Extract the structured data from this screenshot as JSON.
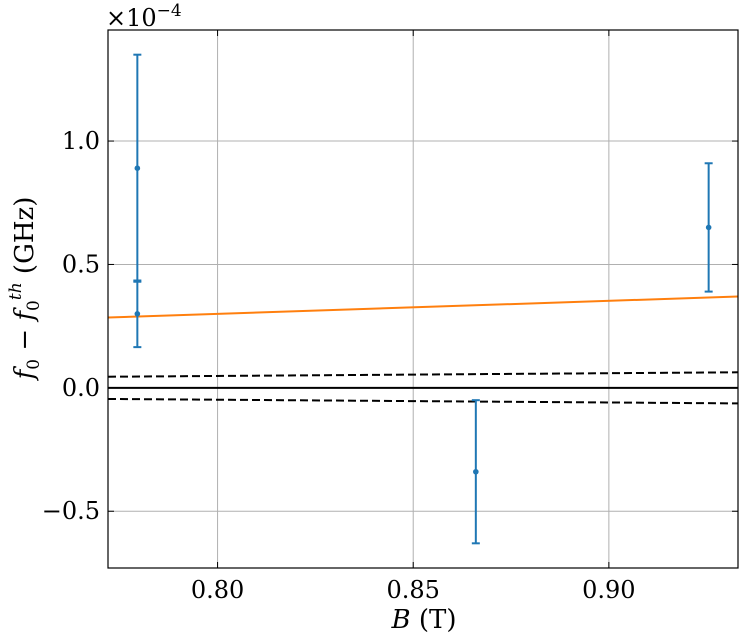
{
  "chart_data": {
    "type": "scatter",
    "xlabel": "B (T)",
    "ylabel": "f0 − f0^th (GHz)",
    "y_multiplier_label": "×10−4",
    "xlim": [
      0.772,
      0.933
    ],
    "ylim": [
      -0.73,
      1.45
    ],
    "x_ticks": [
      0.8,
      0.85,
      0.9
    ],
    "x_tick_labels": [
      "0.80",
      "0.85",
      "0.90"
    ],
    "y_ticks": [
      -0.5,
      0.0,
      0.5,
      1.0
    ],
    "y_tick_labels": [
      "−0.5",
      "0.0",
      "0.5",
      "1.0"
    ],
    "grid": true,
    "series": [
      {
        "kind": "errorbar",
        "color": "#1f77b4",
        "points": [
          {
            "x": 0.7795,
            "y": 0.89,
            "err": 0.46
          },
          {
            "x": 0.7795,
            "y": 0.3,
            "err": 0.135
          },
          {
            "x": 0.866,
            "y": -0.34,
            "err": 0.29
          },
          {
            "x": 0.9255,
            "y": 0.65,
            "err": 0.26
          }
        ]
      },
      {
        "kind": "line",
        "color": "#ff7f0e",
        "x": [
          0.772,
          0.933
        ],
        "y": [
          0.285,
          0.37
        ]
      },
      {
        "kind": "line",
        "style": "solid",
        "color": "#000000",
        "x": [
          0.772,
          0.933
        ],
        "y": [
          0.0,
          0.0
        ]
      },
      {
        "kind": "line",
        "style": "dashed",
        "color": "#000000",
        "x": [
          0.772,
          0.933
        ],
        "y": [
          0.045,
          0.063
        ]
      },
      {
        "kind": "line",
        "style": "dashed",
        "color": "#000000",
        "x": [
          0.772,
          0.933
        ],
        "y": [
          -0.045,
          -0.063
        ]
      }
    ]
  }
}
